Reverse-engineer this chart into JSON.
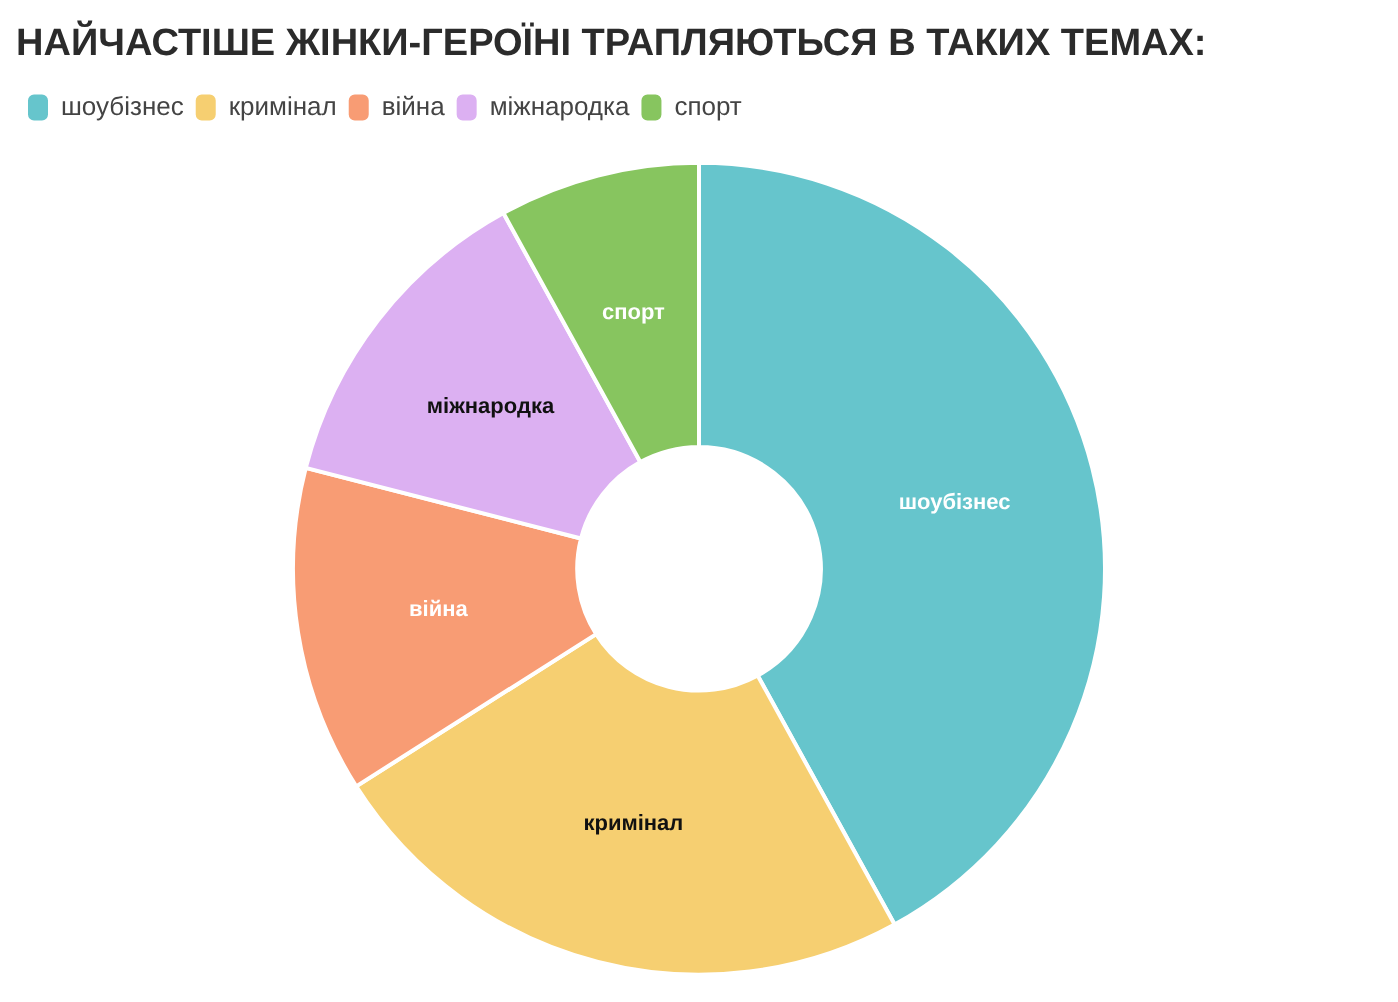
{
  "chart_data": {
    "type": "donut",
    "title": "НАЙЧАСТІШЕ ЖІНКИ-ГЕРОЇНІ ТРАПЛЯЮТЬСЯ В ТАКИХ ТЕМАХ:",
    "categories": [
      "шоубізнес",
      "кримінал",
      "війна",
      "міжнародка",
      "спорт"
    ],
    "values": [
      42,
      24,
      13,
      13,
      8
    ],
    "colors": [
      "#66c5cc",
      "#f6cf71",
      "#f89c74",
      "#dcb0f2",
      "#87c55f"
    ],
    "legend": "top left"
  }
}
